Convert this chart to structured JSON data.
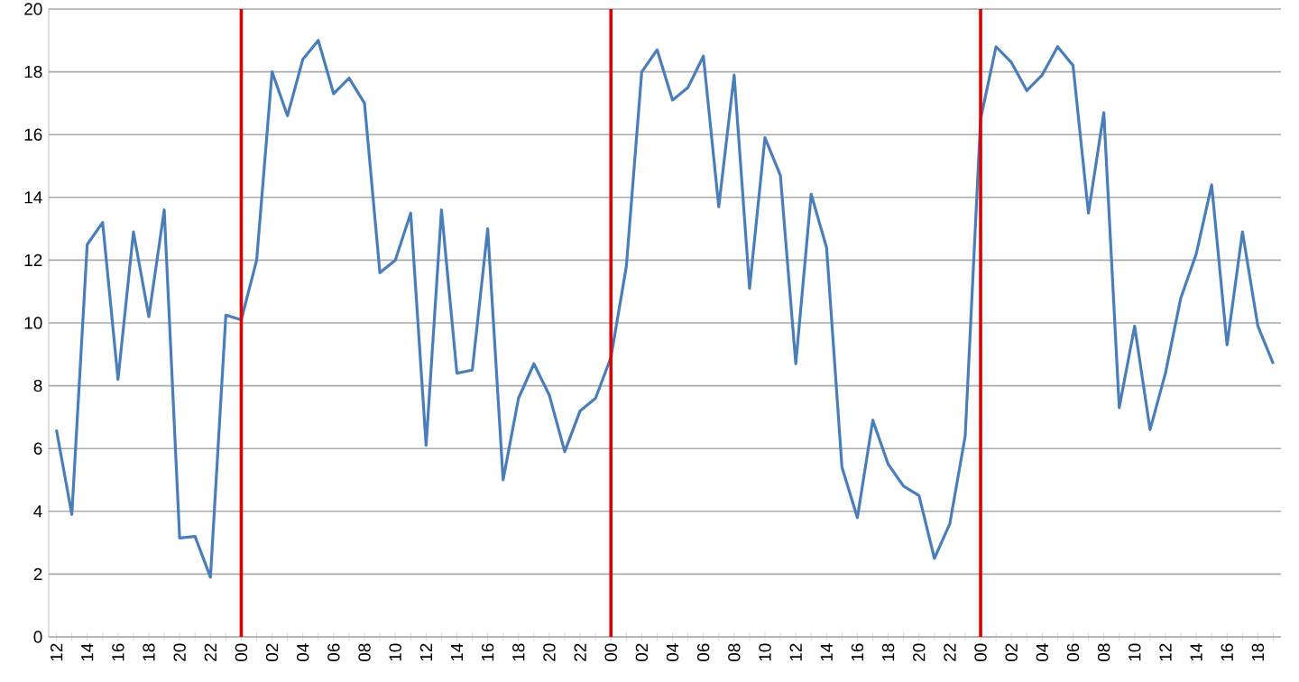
{
  "chart_data": {
    "type": "line",
    "x": [
      12,
      13,
      14,
      15,
      16,
      17,
      18,
      19,
      20,
      21,
      22,
      23,
      24,
      25,
      26,
      27,
      28,
      29,
      30,
      31,
      32,
      33,
      34,
      35,
      36,
      37,
      38,
      39,
      40,
      41,
      42,
      43,
      44,
      45,
      46,
      47,
      48,
      49,
      50,
      51,
      52,
      53,
      54,
      55,
      56,
      57,
      58,
      59,
      60,
      61,
      62,
      63,
      64,
      65,
      66,
      67,
      68,
      69,
      70,
      71,
      72,
      73,
      74,
      75,
      76,
      77,
      78,
      79,
      80,
      81,
      82,
      83,
      84,
      85,
      86,
      87,
      88,
      89,
      90,
      91
    ],
    "series": [
      {
        "color": "#4a7ebb",
        "values": [
          6.6,
          3.9,
          12.5,
          13.2,
          8.2,
          12.9,
          10.2,
          13.6,
          3.15,
          3.2,
          1.9,
          10.25,
          10.1,
          12.0,
          18.0,
          16.6,
          18.4,
          19.0,
          17.3,
          17.8,
          17.0,
          11.6,
          12.0,
          13.5,
          6.1,
          13.6,
          8.4,
          8.5,
          13.0,
          5.0,
          7.6,
          8.7,
          7.7,
          5.9,
          7.2,
          7.6,
          8.9,
          11.8,
          18.0,
          18.7,
          17.1,
          17.5,
          18.5,
          13.7,
          17.9,
          11.1,
          15.9,
          14.7,
          8.7,
          14.1,
          12.4,
          5.4,
          3.8,
          6.9,
          5.5,
          4.8,
          4.5,
          2.5,
          3.6,
          6.4,
          16.5,
          18.8,
          18.3,
          17.4,
          17.9,
          18.8,
          18.2,
          13.5,
          16.7,
          7.3,
          9.9,
          6.6,
          8.4,
          10.8,
          12.2,
          14.4,
          9.3,
          12.9,
          9.9,
          8.7
        ]
      }
    ],
    "xlim": [
      11.5,
      91.5
    ],
    "xticks": [
      12,
      {
        "value": 13,
        "label": null
      },
      14,
      {
        "value": 15,
        "label": null
      },
      16,
      {
        "value": 17,
        "label": null
      },
      18,
      {
        "value": 19,
        "label": null
      },
      20,
      {
        "value": 21,
        "label": null
      },
      22,
      {
        "value": 23,
        "label": null
      },
      {
        "value": 24,
        "label": "00"
      },
      {
        "value": 25,
        "label": null
      },
      {
        "value": 26,
        "label": "02"
      },
      {
        "value": 27,
        "label": null
      },
      {
        "value": 28,
        "label": "04"
      },
      {
        "value": 29,
        "label": null
      },
      {
        "value": 30,
        "label": "06"
      },
      {
        "value": 31,
        "label": null
      },
      {
        "value": 32,
        "label": "08"
      },
      {
        "value": 33,
        "label": null
      },
      {
        "value": 34,
        "label": "10"
      },
      {
        "value": 35,
        "label": null
      },
      {
        "value": 36,
        "label": "12"
      },
      {
        "value": 37,
        "label": null
      },
      {
        "value": 38,
        "label": "14"
      },
      {
        "value": 39,
        "label": null
      },
      {
        "value": 40,
        "label": "16"
      },
      {
        "value": 41,
        "label": null
      },
      {
        "value": 42,
        "label": "18"
      },
      {
        "value": 43,
        "label": null
      },
      {
        "value": 44,
        "label": "20"
      },
      {
        "value": 45,
        "label": null
      },
      {
        "value": 46,
        "label": "22"
      },
      {
        "value": 47,
        "label": null
      },
      {
        "value": 48,
        "label": "00"
      },
      {
        "value": 49,
        "label": null
      },
      {
        "value": 50,
        "label": "02"
      },
      {
        "value": 51,
        "label": null
      },
      {
        "value": 52,
        "label": "04"
      },
      {
        "value": 53,
        "label": null
      },
      {
        "value": 54,
        "label": "06"
      },
      {
        "value": 55,
        "label": null
      },
      {
        "value": 56,
        "label": "08"
      },
      {
        "value": 57,
        "label": null
      },
      {
        "value": 58,
        "label": "10"
      },
      {
        "value": 59,
        "label": null
      },
      {
        "value": 60,
        "label": "12"
      },
      {
        "value": 61,
        "label": null
      },
      {
        "value": 62,
        "label": "14"
      },
      {
        "value": 63,
        "label": null
      },
      {
        "value": 64,
        "label": "16"
      },
      {
        "value": 65,
        "label": null
      },
      {
        "value": 66,
        "label": "18"
      },
      {
        "value": 67,
        "label": null
      },
      {
        "value": 68,
        "label": "20"
      },
      {
        "value": 69,
        "label": null
      },
      {
        "value": 70,
        "label": "22"
      },
      {
        "value": 71,
        "label": null
      },
      {
        "value": 72,
        "label": "00"
      },
      {
        "value": 73,
        "label": null
      },
      {
        "value": 74,
        "label": "02"
      },
      {
        "value": 75,
        "label": null
      },
      {
        "value": 76,
        "label": "04"
      },
      {
        "value": 77,
        "label": null
      },
      {
        "value": 78,
        "label": "06"
      },
      {
        "value": 79,
        "label": null
      },
      {
        "value": 80,
        "label": "08"
      },
      {
        "value": 81,
        "label": null
      },
      {
        "value": 82,
        "label": "10"
      },
      {
        "value": 83,
        "label": null
      },
      {
        "value": 84,
        "label": "12"
      },
      {
        "value": 85,
        "label": null
      },
      {
        "value": 86,
        "label": "14"
      },
      {
        "value": 87,
        "label": null
      },
      {
        "value": 88,
        "label": "16"
      },
      {
        "value": 89,
        "label": null
      },
      {
        "value": 90,
        "label": "18"
      },
      {
        "value": 91,
        "label": null
      }
    ],
    "ylim": [
      0,
      20
    ],
    "yticks": [
      0,
      2,
      4,
      6,
      8,
      10,
      12,
      14,
      16,
      18,
      20
    ],
    "grid": "y",
    "marker": "none",
    "line_style": "solid",
    "ref_lines": [
      {
        "axis": "x",
        "value": 24,
        "color": "#e00000"
      },
      {
        "axis": "x",
        "value": 48,
        "color": "#e00000"
      },
      {
        "axis": "x",
        "value": 72,
        "color": "#e00000"
      }
    ]
  }
}
